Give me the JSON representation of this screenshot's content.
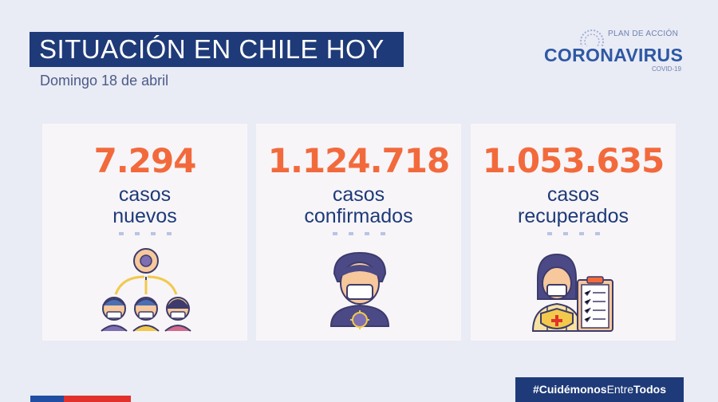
{
  "header": {
    "title": "SITUACIÓN EN CHILE HOY",
    "date": "Domingo 18 de abril"
  },
  "logo": {
    "plan": "PLAN DE ACCIÓN",
    "name": "CORONAVIRUS",
    "sub": "COVID-19"
  },
  "cards": [
    {
      "value": "7.294",
      "label_line1": "casos",
      "label_line2": "nuevos",
      "icon": "contagion-people-icon"
    },
    {
      "value": "1.124.718",
      "label_line1": "casos",
      "label_line2": "confirmados",
      "icon": "masked-person-virus-icon"
    },
    {
      "value": "1.053.635",
      "label_line1": "casos",
      "label_line2": "recuperados",
      "icon": "health-worker-clipboard-icon"
    }
  ],
  "footer": {
    "hashtag_bold1": "#Cuidémonos",
    "hashtag_thin": "Entre",
    "hashtag_bold2": "Todos"
  },
  "colors": {
    "navy": "#1e3a78",
    "accent": "#f26a3c",
    "background": "#e9ebf5",
    "card": "#f7f5f8"
  }
}
